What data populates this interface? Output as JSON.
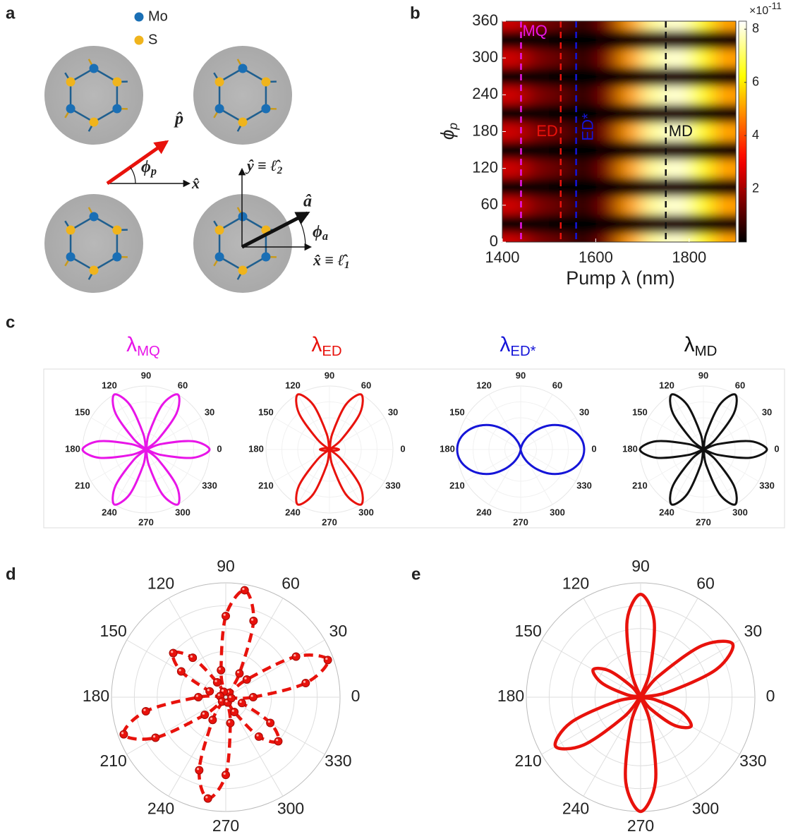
{
  "panel_labels": [
    "a",
    "b",
    "c",
    "d",
    "e"
  ],
  "panel_a": {
    "legend": [
      {
        "label": "Mo",
        "color": "#1a6fb5"
      },
      {
        "label": "S",
        "color": "#f0b41c"
      }
    ],
    "p_label": "p̂",
    "phi_p": {
      "text": "ϕ",
      "sub": "p"
    },
    "x_label": "x̂",
    "y_axis_label": {
      "text": "ŷ ≡ ℓ̂",
      "sub": "2"
    },
    "a_label": "â",
    "phi_a": {
      "text": "ϕ",
      "sub": "a"
    },
    "x_axis_label": {
      "text": "x̂ ≡ ℓ̂",
      "sub": "1"
    }
  },
  "chart_data": [
    {
      "type": "heatmap",
      "colormap": "hot",
      "x": [
        1425,
        1475,
        1525,
        1575,
        1625,
        1675,
        1725,
        1775,
        1825,
        1875
      ],
      "y": [
        0,
        30,
        60,
        90,
        120,
        150,
        180,
        210,
        240,
        270,
        300,
        330,
        360
      ],
      "z": [
        [
          2.5,
          1.5,
          1.2,
          0.3,
          1.5,
          5,
          7.5,
          8,
          6.5,
          5
        ],
        [
          0.1,
          0.1,
          0,
          0,
          0.1,
          0.3,
          0.4,
          0.4,
          0.3,
          0.3
        ],
        [
          2.5,
          1.5,
          1.2,
          0.3,
          1.5,
          5,
          7.5,
          8,
          6.5,
          5
        ],
        [
          0.1,
          0.1,
          0,
          0,
          0.1,
          0.3,
          0.4,
          0.4,
          0.3,
          0.3
        ],
        [
          2.5,
          1.5,
          1.2,
          0.3,
          1.5,
          5,
          7.5,
          8,
          6.5,
          5
        ],
        [
          0.1,
          0.1,
          0,
          0,
          0.1,
          0.3,
          0.4,
          0.4,
          0.3,
          0.3
        ],
        [
          2.5,
          1.5,
          1.2,
          0.3,
          1.5,
          5,
          7.5,
          8,
          6.5,
          5
        ],
        [
          0.1,
          0.1,
          0,
          0,
          0.1,
          0.3,
          0.4,
          0.4,
          0.3,
          0.3
        ],
        [
          2.5,
          1.5,
          1.2,
          0.3,
          1.5,
          5,
          7.5,
          8,
          6.5,
          5
        ],
        [
          0.1,
          0.1,
          0,
          0,
          0.1,
          0.3,
          0.4,
          0.4,
          0.3,
          0.3
        ],
        [
          2.5,
          1.5,
          1.2,
          0.3,
          1.5,
          5,
          7.5,
          8,
          6.5,
          5
        ],
        [
          0.1,
          0.1,
          0,
          0,
          0.1,
          0.3,
          0.4,
          0.4,
          0.3,
          0.3
        ],
        [
          2.5,
          1.5,
          1.2,
          0.3,
          1.5,
          5,
          7.5,
          8,
          6.5,
          5
        ]
      ],
      "xlim": [
        1400,
        1900
      ],
      "ylim": [
        0,
        360
      ],
      "xticks": [
        1400,
        1600,
        1800
      ],
      "yticks": [
        0,
        60,
        120,
        180,
        240,
        300,
        360
      ],
      "xlabel": "Pump λ (nm)",
      "ylabel": {
        "text": "ϕ",
        "sub": "p"
      },
      "colorbar": {
        "lim": [
          0,
          8.3
        ],
        "ticks": [
          2,
          4,
          6,
          8
        ],
        "multiplier": {
          "base": "×10",
          "exponent": "-11"
        }
      },
      "markers": [
        {
          "label": "MQ",
          "x": 1440,
          "color": "#e815e8"
        },
        {
          "label": "ED",
          "x": 1525,
          "color": "#e8120c"
        },
        {
          "label": "ED*",
          "x": 1558,
          "color": "#1515d8"
        },
        {
          "label": "MD",
          "x": 1750,
          "color": "#111111"
        }
      ]
    },
    {
      "type": "polar",
      "title": {
        "text": "λ",
        "sub": "MQ"
      },
      "color": "#e815e8",
      "theta": [
        0,
        10,
        20,
        30,
        40,
        50,
        60,
        70,
        80,
        90,
        100,
        110,
        120,
        130,
        140,
        150,
        160,
        170,
        180,
        190,
        200,
        210,
        220,
        230,
        240,
        250,
        260,
        270,
        280,
        290,
        300,
        310,
        320,
        330,
        340,
        350
      ],
      "values": [
        1,
        0.75,
        0.25,
        0,
        0.25,
        0.75,
        1,
        0.75,
        0.25,
        0,
        0.25,
        0.75,
        1,
        0.75,
        0.25,
        0,
        0.25,
        0.75,
        1,
        0.75,
        0.25,
        0,
        0.25,
        0.75,
        1,
        0.75,
        0.25,
        0,
        0.25,
        0.75,
        1,
        0.75,
        0.25,
        0,
        0.25,
        0.75
      ],
      "thetaticks": [
        0,
        30,
        60,
        90,
        120,
        150,
        180,
        210,
        240,
        270,
        300,
        330
      ],
      "rlim": [
        0,
        1
      ],
      "rticks": [
        0.25,
        0.5,
        0.75,
        1
      ]
    },
    {
      "type": "polar",
      "title": {
        "text": "λ",
        "sub": "ED"
      },
      "color": "#e8120c",
      "theta": [
        0,
        10,
        20,
        30,
        40,
        50,
        60,
        70,
        80,
        90,
        100,
        110,
        120,
        130,
        140,
        150,
        160,
        170,
        180,
        190,
        200,
        210,
        220,
        230,
        240,
        250,
        260,
        270,
        280,
        290,
        300,
        310,
        320,
        330,
        340,
        350
      ],
      "values": [
        0.15,
        0.1,
        0.05,
        0,
        0.25,
        0.75,
        1,
        0.75,
        0.25,
        0,
        0.25,
        0.75,
        1,
        0.75,
        0.25,
        0,
        0.05,
        0.1,
        0.15,
        0.1,
        0.05,
        0,
        0.25,
        0.75,
        1,
        0.75,
        0.25,
        0,
        0.25,
        0.75,
        1,
        0.75,
        0.25,
        0,
        0.05,
        0.1
      ],
      "thetaticks": [
        0,
        30,
        60,
        90,
        120,
        150,
        180,
        210,
        240,
        270,
        300,
        330
      ],
      "rlim": [
        0,
        1
      ],
      "rticks": [
        0.25,
        0.5,
        0.75,
        1
      ]
    },
    {
      "type": "polar",
      "title": {
        "text": "λ",
        "sub": "ED*"
      },
      "color": "#1515d8",
      "theta": [
        0,
        10,
        20,
        30,
        40,
        50,
        60,
        70,
        80,
        90,
        100,
        110,
        120,
        130,
        140,
        150,
        160,
        170,
        180,
        190,
        200,
        210,
        220,
        230,
        240,
        250,
        260,
        270,
        280,
        290,
        300,
        310,
        320,
        330,
        340,
        350
      ],
      "values": [
        1,
        0.97,
        0.88,
        0.75,
        0.59,
        0.41,
        0.25,
        0.12,
        0.03,
        0,
        0.03,
        0.12,
        0.25,
        0.41,
        0.59,
        0.75,
        0.88,
        0.97,
        1,
        0.97,
        0.88,
        0.75,
        0.59,
        0.41,
        0.25,
        0.12,
        0.03,
        0,
        0.03,
        0.12,
        0.25,
        0.41,
        0.59,
        0.75,
        0.88,
        0.97
      ],
      "thetaticks": [
        0,
        30,
        60,
        90,
        120,
        150,
        180,
        210,
        240,
        270,
        300,
        330
      ],
      "rlim": [
        0,
        1
      ],
      "rticks": [
        0.25,
        0.5,
        0.75,
        1
      ]
    },
    {
      "type": "polar",
      "title": {
        "text": "λ",
        "sub": "MD"
      },
      "color": "#111111",
      "theta": [
        0,
        10,
        20,
        30,
        40,
        50,
        60,
        70,
        80,
        90,
        100,
        110,
        120,
        130,
        140,
        150,
        160,
        170,
        180,
        190,
        200,
        210,
        220,
        230,
        240,
        250,
        260,
        270,
        280,
        290,
        300,
        310,
        320,
        330,
        340,
        350
      ],
      "values": [
        1,
        0.75,
        0.25,
        0,
        0.25,
        0.75,
        1,
        0.75,
        0.25,
        0,
        0.25,
        0.75,
        1,
        0.75,
        0.25,
        0,
        0.25,
        0.75,
        1,
        0.75,
        0.25,
        0,
        0.25,
        0.75,
        1,
        0.75,
        0.25,
        0,
        0.25,
        0.75,
        1,
        0.75,
        0.25,
        0,
        0.25,
        0.75
      ],
      "thetaticks": [
        0,
        30,
        60,
        90,
        120,
        150,
        180,
        210,
        240,
        270,
        300,
        330
      ],
      "rlim": [
        0,
        1
      ],
      "rticks": [
        0.25,
        0.5,
        0.75,
        1
      ]
    },
    {
      "type": "polar",
      "color": "#e8120c",
      "markers": true,
      "dashed": true,
      "theta": [
        0,
        10,
        20,
        30,
        40,
        50,
        60,
        70,
        80,
        90,
        100,
        110,
        120,
        130,
        140,
        150,
        160,
        170,
        180,
        190,
        200,
        210,
        220,
        230,
        240,
        250,
        260,
        270,
        280,
        290,
        300,
        310,
        320,
        330,
        340,
        350
      ],
      "values": [
        0.24,
        0.71,
        0.95,
        0.71,
        0.24,
        0.05,
        0.24,
        0.71,
        0.95,
        0.71,
        0.24,
        0.05,
        0.15,
        0.45,
        0.6,
        0.45,
        0.15,
        0.05,
        0.24,
        0.71,
        0.95,
        0.71,
        0.24,
        0.05,
        0.23,
        0.68,
        0.9,
        0.68,
        0.23,
        0.05,
        0.15,
        0.45,
        0.6,
        0.45,
        0.15,
        0.05
      ],
      "thetaticks": [
        0,
        30,
        60,
        90,
        120,
        150,
        180,
        210,
        240,
        270,
        300,
        330
      ],
      "rlim": [
        0,
        1
      ],
      "rticks": [
        0.2,
        0.4,
        0.6,
        0.8,
        1
      ]
    },
    {
      "type": "polar",
      "color": "#e8120c",
      "theta": [
        0,
        10,
        20,
        30,
        40,
        50,
        60,
        70,
        80,
        90,
        100,
        110,
        120,
        130,
        140,
        150,
        160,
        170,
        180,
        190,
        200,
        210,
        220,
        230,
        240,
        250,
        260,
        270,
        280,
        290,
        300,
        310,
        320,
        330,
        340,
        350
      ],
      "values": [
        0,
        0.23,
        0.7,
        0.93,
        0.7,
        0.23,
        0,
        0.23,
        0.68,
        0.9,
        0.68,
        0.23,
        0,
        0.12,
        0.36,
        0.48,
        0.36,
        0.12,
        0,
        0.22,
        0.65,
        0.86,
        0.65,
        0.22,
        0,
        0.25,
        0.75,
        1,
        0.75,
        0.25,
        0,
        0.13,
        0.38,
        0.51,
        0.38,
        0.13
      ],
      "thetaticks": [
        0,
        30,
        60,
        90,
        120,
        150,
        180,
        210,
        240,
        270,
        300,
        330
      ],
      "rlim": [
        0,
        1
      ],
      "rticks": [
        0.2,
        0.4,
        0.6,
        0.8,
        1
      ]
    }
  ]
}
